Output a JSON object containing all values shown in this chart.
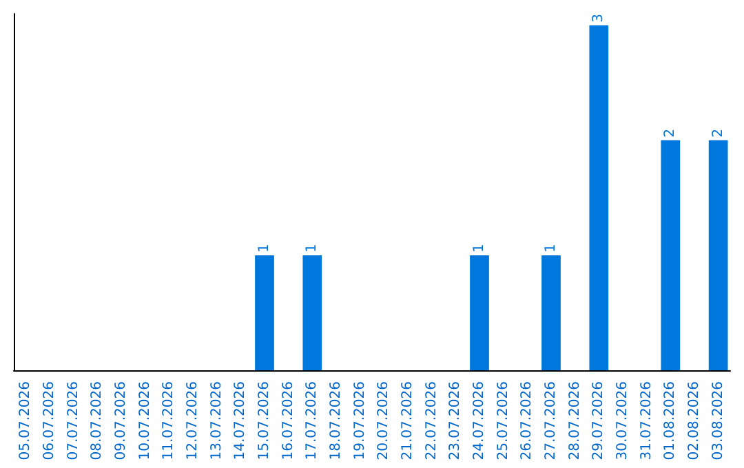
{
  "chart_data": {
    "type": "bar",
    "categories": [
      "05.07.2026",
      "06.07.2026",
      "07.07.2026",
      "08.07.2026",
      "09.07.2026",
      "10.07.2026",
      "11.07.2026",
      "12.07.2026",
      "13.07.2026",
      "14.07.2026",
      "15.07.2026",
      "16.07.2026",
      "17.07.2026",
      "18.07.2026",
      "19.07.2026",
      "20.07.2026",
      "21.07.2026",
      "22.07.2026",
      "23.07.2026",
      "24.07.2026",
      "25.07.2026",
      "26.07.2026",
      "27.07.2026",
      "28.07.2026",
      "29.07.2026",
      "30.07.2026",
      "31.07.2026",
      "01.08.2026",
      "02.08.2026",
      "03.08.2026"
    ],
    "values": [
      0,
      0,
      0,
      0,
      0,
      0,
      0,
      0,
      0,
      0,
      1,
      0,
      1,
      0,
      0,
      0,
      0,
      0,
      0,
      1,
      0,
      0,
      1,
      0,
      3,
      0,
      0,
      2,
      0,
      2
    ],
    "color": "#0077dd",
    "ylim": [
      0,
      3.1
    ],
    "tick_labels": "x",
    "value_labels": [
      null,
      null,
      null,
      null,
      null,
      null,
      null,
      null,
      null,
      null,
      "1",
      null,
      "1",
      null,
      null,
      null,
      null,
      null,
      null,
      "1",
      null,
      null,
      "1",
      null,
      "3",
      null,
      null,
      "2",
      null,
      "2"
    ],
    "grid": false
  }
}
